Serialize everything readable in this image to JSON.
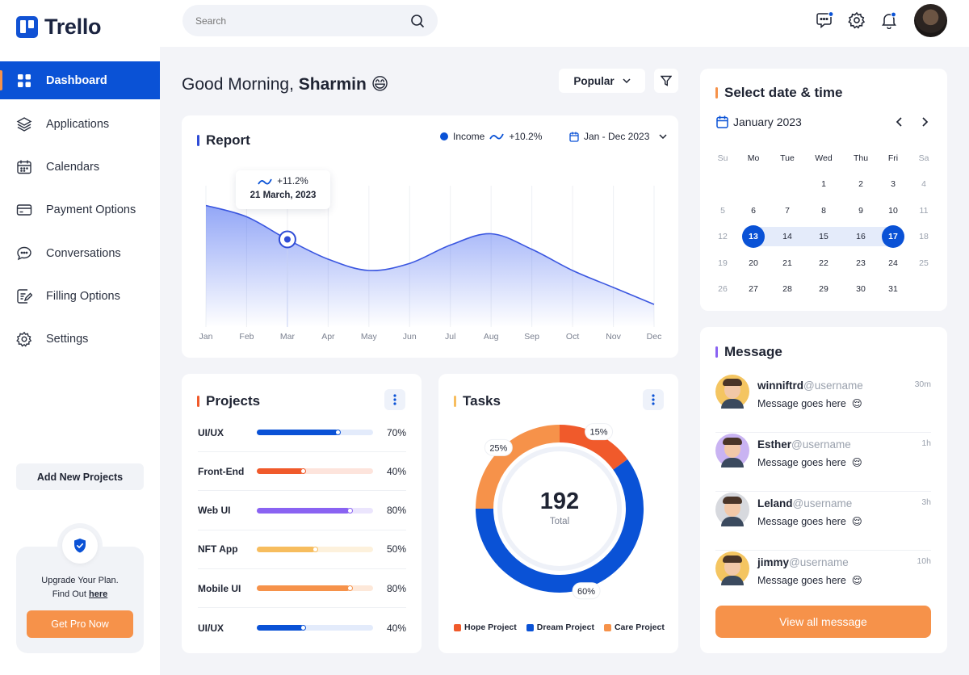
{
  "app": {
    "name": "Trello"
  },
  "sidebar": {
    "items": [
      {
        "label": "Dashboard"
      },
      {
        "label": "Applications"
      },
      {
        "label": "Calendars"
      },
      {
        "label": "Payment Options"
      },
      {
        "label": "Conversations"
      },
      {
        "label": "Filling Options"
      },
      {
        "label": "Settings"
      }
    ],
    "add_projects_label": "Add New Projects",
    "upgrade": {
      "line1": "Upgrade Your Plan.",
      "line2": "Find Out",
      "link": "here",
      "button": "Get Pro Now"
    }
  },
  "topbar": {
    "search_placeholder": "Search"
  },
  "greeting": {
    "prefix": "Good Morning,",
    "name": "Sharmin",
    "emoji": "😄"
  },
  "filter": {
    "selected": "Popular"
  },
  "report": {
    "title": "Report",
    "legend": "Income",
    "change": "+10.2%",
    "range": "Jan - Dec 2023",
    "tooltip": {
      "change": "+11.2%",
      "date": "21 March, 2023"
    }
  },
  "chart_data": {
    "type": "area",
    "x": [
      "Jan",
      "Feb",
      "Mar",
      "Apr",
      "May",
      "Jun",
      "Jul",
      "Aug",
      "Sep",
      "Oct",
      "Nov",
      "Dec"
    ],
    "series": [
      {
        "name": "Income",
        "values": [
          86,
          78,
          62,
          48,
          40,
          45,
          58,
          66,
          55,
          40,
          28,
          16
        ]
      }
    ],
    "ylim": [
      0,
      100
    ],
    "grid": true,
    "highlight_index": 2
  },
  "projects": {
    "title": "Projects",
    "items": [
      {
        "name": "UI/UX",
        "value": 70,
        "pct": "70%",
        "color": "#0a52d6",
        "track": "#e3ebfb"
      },
      {
        "name": "Front-End",
        "value": 40,
        "pct": "40%",
        "color": "#f05a2b",
        "track": "#fde4dc"
      },
      {
        "name": "Web UI",
        "value": 80,
        "pct": "80%",
        "color": "#8a63f2",
        "track": "#ebe5fd"
      },
      {
        "name": "NFT App",
        "value": 50,
        "pct": "50%",
        "color": "#f7bd5e",
        "track": "#fdf1dc"
      },
      {
        "name": "Mobile UI",
        "value": 80,
        "pct": "80%",
        "color": "#f6924a",
        "track": "#fde8d9"
      },
      {
        "name": "UI/UX",
        "value": 40,
        "pct": "40%",
        "color": "#0a52d6",
        "track": "#e3ebfb"
      }
    ]
  },
  "tasks": {
    "title": "Tasks",
    "total": "192",
    "total_label": "Total",
    "slices": [
      {
        "name": "Hope Project",
        "value": 15,
        "label": "15%",
        "color": "#f05a2b"
      },
      {
        "name": "Dream Project",
        "value": 60,
        "label": "60%",
        "color": "#0a52d6"
      },
      {
        "name": "Care Project",
        "value": 25,
        "label": "25%",
        "color": "#f6924a"
      }
    ]
  },
  "calendar": {
    "title": "Select date & time",
    "month": "January 2023",
    "weekdays": [
      "Su",
      "Mo",
      "Tue",
      "Wed",
      "Thu",
      "Fri",
      "Sa"
    ],
    "weeks": [
      [
        "",
        "",
        "",
        "1",
        "2",
        "3",
        "4"
      ],
      [
        "5",
        "6",
        "7",
        "8",
        "9",
        "10",
        "11"
      ],
      [
        "12",
        "13",
        "14",
        "15",
        "16",
        "17",
        "18"
      ],
      [
        "19",
        "20",
        "21",
        "22",
        "23",
        "24",
        "25"
      ],
      [
        "26",
        "27",
        "28",
        "29",
        "30",
        "31",
        ""
      ]
    ],
    "range_start": "13",
    "range_end": "17"
  },
  "messages": {
    "title": "Message",
    "items": [
      {
        "name": "winniftrd",
        "handle": "@username",
        "text": "Message goes here",
        "emoji": "😌",
        "time": "30m",
        "avatar_color": "#f4c561"
      },
      {
        "name": "Esther",
        "handle": "@username",
        "text": "Message goes here",
        "emoji": "😌",
        "time": "1h",
        "avatar_color": "#c9b3f2"
      },
      {
        "name": "Leland",
        "handle": "@username",
        "text": "Message goes here",
        "emoji": "😌",
        "time": "3h",
        "avatar_color": "#d7d9de"
      },
      {
        "name": "jimmy",
        "handle": "@username",
        "text": "Message goes here",
        "emoji": "😌",
        "time": "10h",
        "avatar_color": "#f4c561"
      }
    ],
    "view_all": "View all message"
  },
  "colors": {
    "primary": "#0a52d6",
    "accent": "#f6924a"
  }
}
